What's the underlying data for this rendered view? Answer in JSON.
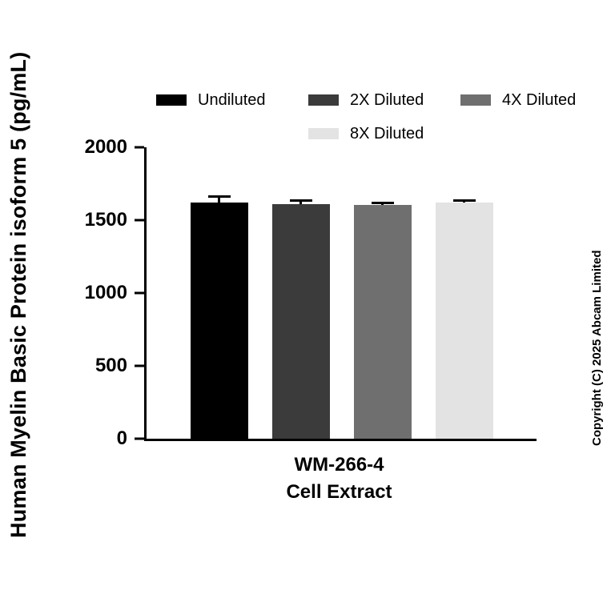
{
  "y_axis_title": "Human Myelin Basic Protein isoform 5 (pg/mL)",
  "x_axis_title_line1": "WM-266-4",
  "x_axis_title_line2": "Cell Extract",
  "copyright": "Copyright (C) 2025 Abcam Limited",
  "chart_data": {
    "type": "bar",
    "title": "",
    "ylabel": "Human Myelin Basic Protein isoform 5 (pg/mL)",
    "xlabel": "WM-266-4 Cell Extract",
    "categories": [
      "WM-266-4 Cell Extract"
    ],
    "series": [
      {
        "name": "Undiluted",
        "value": 1620,
        "error": 40,
        "color": "#000000"
      },
      {
        "name": "2X Diluted",
        "value": 1610,
        "error": 25,
        "color": "#3b3b3b"
      },
      {
        "name": "4X Diluted",
        "value": 1605,
        "error": 15,
        "color": "#6f6f6f"
      },
      {
        "name": "8X Diluted",
        "value": 1620,
        "error": 15,
        "color": "#e3e3e3"
      }
    ],
    "ylim": [
      0,
      2000
    ],
    "yticks": [
      0,
      500,
      1000,
      1500,
      2000
    ],
    "grid": false,
    "legend_position": "top",
    "error_bar_color": "#000000"
  }
}
